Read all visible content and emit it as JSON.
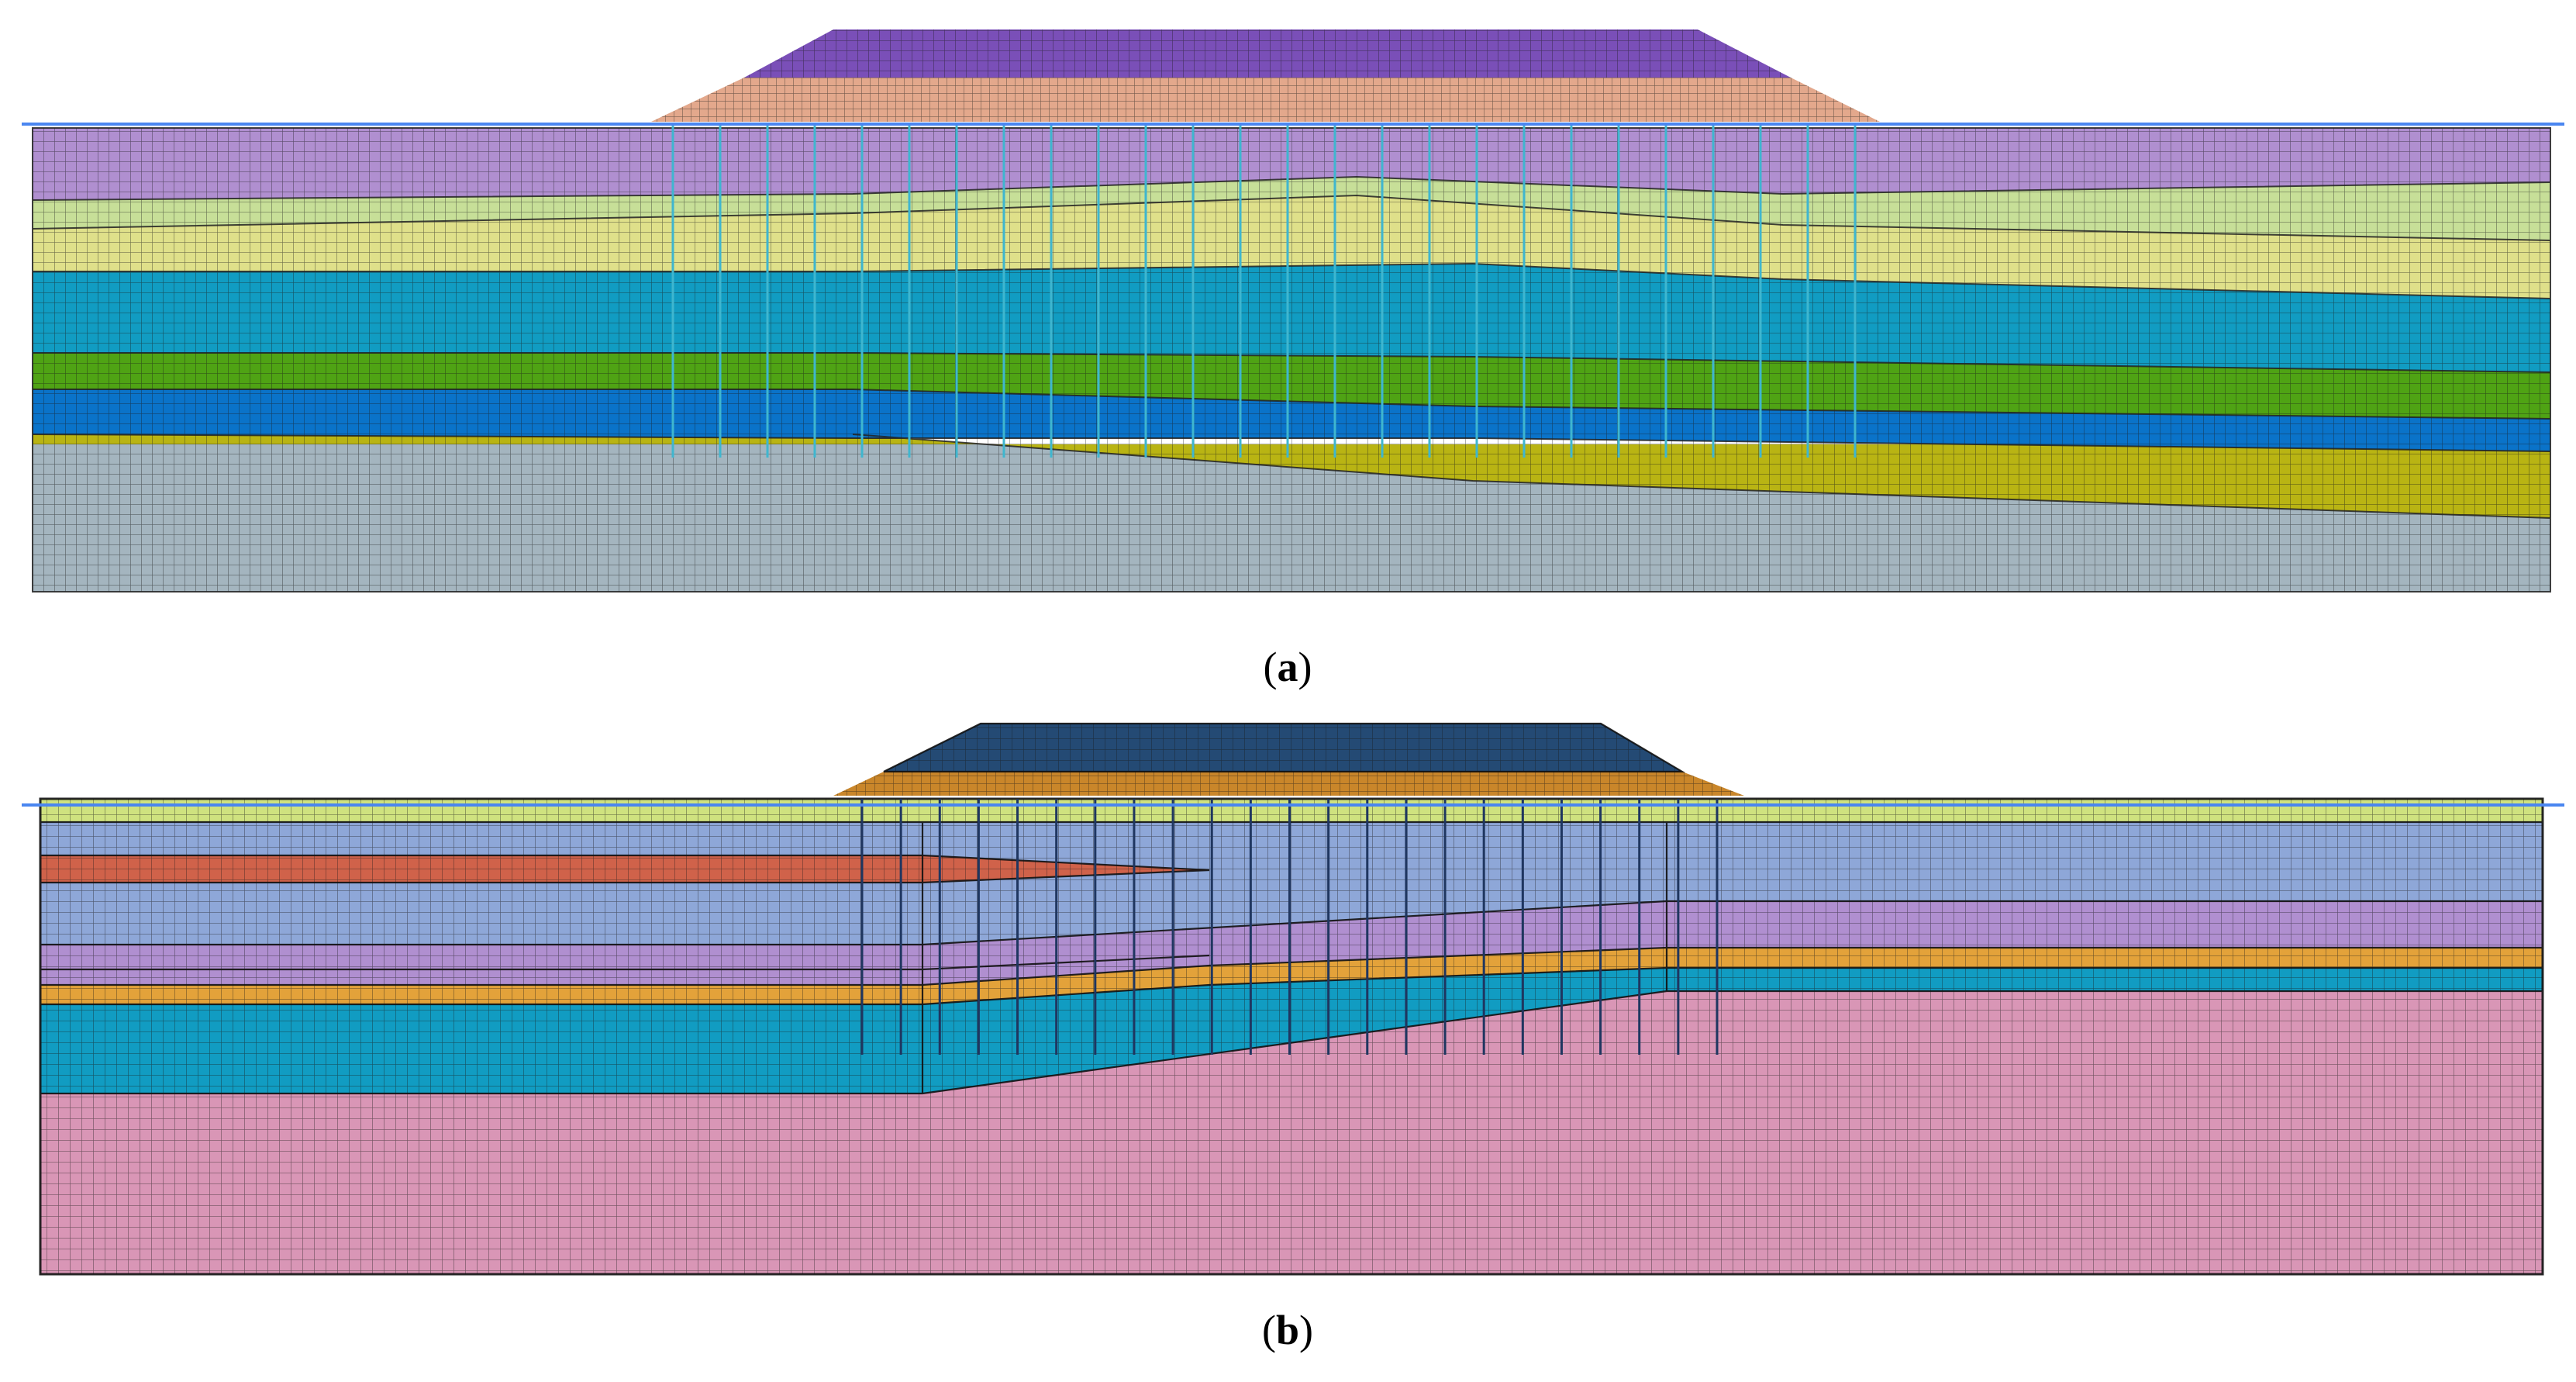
{
  "figure": {
    "panels": [
      {
        "id": "a",
        "caption_open": "(",
        "caption_letter": "a",
        "caption_close": ")",
        "water_table_color": "#4a86f0",
        "pile_color": "#3fb6cf",
        "mesh_line_color": "#1a1a1a",
        "layer_colors": {
          "embankment_top": "#7a4fb8",
          "embankment_base": "#e3a88c",
          "soil_1": "#b08fd0",
          "soil_2": "#c7df98",
          "soil_3": "#dfe08a",
          "soil_4": "#119cc2",
          "soil_5": "#4fa314",
          "soil_6": "#0a73c9",
          "soil_7": "#b9b413",
          "soil_8": "#a4b5bf"
        },
        "pile_count": 26
      },
      {
        "id": "b",
        "caption_open": "(",
        "caption_letter": "b",
        "caption_close": ")",
        "water_table_color": "#4a86f0",
        "pile_color": "#1f3660",
        "mesh_line_color": "#1a1a1a",
        "layer_colors": {
          "embankment_top": "#244a74",
          "embankment_base": "#c9862a",
          "soil_1": "#cfe27f",
          "soil_2": "#8ea7d8",
          "soil_3": "#d0624a",
          "soil_4": "#b08fd0",
          "soil_5": "#e3a23a",
          "soil_6": "#119cc2",
          "soil_7": "#d996b6"
        },
        "pile_count": 23
      }
    ]
  }
}
